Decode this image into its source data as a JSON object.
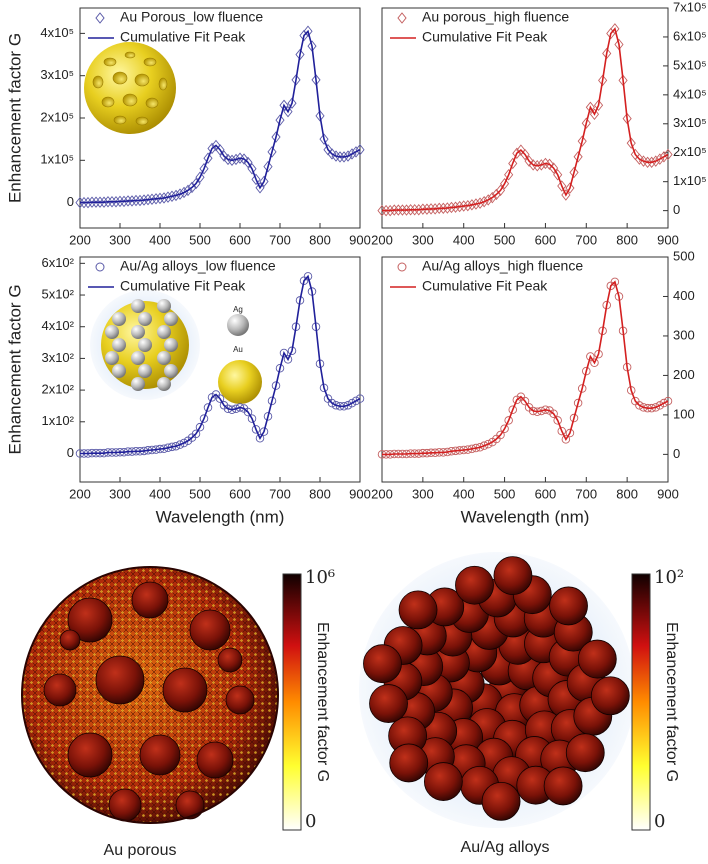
{
  "chart_data": [
    {
      "type": "line",
      "ylabel": "Enhancement factor G",
      "y_axis_side": "left",
      "legend": "upper left",
      "x": [
        200,
        210,
        220,
        230,
        240,
        250,
        260,
        270,
        280,
        290,
        300,
        310,
        320,
        330,
        340,
        350,
        360,
        370,
        380,
        390,
        400,
        410,
        420,
        430,
        440,
        450,
        460,
        470,
        480,
        490,
        500,
        510,
        520,
        530,
        540,
        550,
        560,
        570,
        580,
        590,
        600,
        610,
        620,
        630,
        640,
        650,
        660,
        670,
        680,
        690,
        700,
        710,
        720,
        730,
        740,
        750,
        760,
        770,
        780,
        790,
        800,
        810,
        820,
        830,
        840,
        850,
        860,
        870,
        880,
        890,
        900
      ],
      "xlim": [
        200,
        900
      ],
      "xticks": [
        200,
        300,
        400,
        500,
        600,
        700,
        800,
        900
      ],
      "ylim": [
        -60000,
        460000
      ],
      "yticks": [
        0,
        {
          "value": 100000,
          "label": "1x10⁵"
        },
        {
          "value": 200000,
          "label": "2x10⁵"
        },
        {
          "value": 300000,
          "label": "3x10⁵"
        },
        {
          "value": 400000,
          "label": "4x10⁵"
        }
      ],
      "series": [
        {
          "name": "Au Porous_low fluence",
          "color": "#5a5aa8",
          "marker": "diamond",
          "values": [
            0,
            0,
            0,
            1000,
            1000,
            1000,
            1000,
            2000,
            2000,
            2000,
            3000,
            3000,
            4000,
            4000,
            5000,
            5000,
            6000,
            7000,
            8000,
            9000,
            10000,
            11000,
            13000,
            15000,
            17000,
            20000,
            24000,
            29000,
            36000,
            45000,
            60000,
            80000,
            105000,
            128000,
            135000,
            125000,
            110000,
            102000,
            100000,
            102000,
            105000,
            103000,
            95000,
            80000,
            55000,
            35000,
            50000,
            85000,
            120000,
            155000,
            195000,
            230000,
            215000,
            235000,
            290000,
            350000,
            395000,
            405000,
            370000,
            290000,
            205000,
            150000,
            125000,
            115000,
            110000,
            108000,
            108000,
            110000,
            115000,
            120000,
            125000
          ]
        },
        {
          "name": "Cumulative Fit Peak",
          "color": "#20209a",
          "values": [
            0,
            0,
            0,
            1000,
            1000,
            1000,
            1000,
            2000,
            2000,
            2000,
            3000,
            3000,
            4000,
            4000,
            5000,
            5000,
            6000,
            7000,
            8000,
            9000,
            10000,
            11000,
            13000,
            15000,
            17000,
            20000,
            24000,
            29000,
            36000,
            45000,
            60000,
            80000,
            105000,
            128000,
            135000,
            125000,
            110000,
            102000,
            100000,
            102000,
            105000,
            103000,
            95000,
            80000,
            55000,
            35000,
            50000,
            85000,
            120000,
            155000,
            195000,
            230000,
            215000,
            235000,
            290000,
            350000,
            395000,
            405000,
            370000,
            290000,
            205000,
            150000,
            125000,
            115000,
            110000,
            108000,
            108000,
            110000,
            115000,
            120000,
            125000
          ]
        }
      ]
    },
    {
      "type": "line",
      "y_axis_side": "right",
      "legend": "upper left",
      "x": [
        200,
        210,
        220,
        230,
        240,
        250,
        260,
        270,
        280,
        290,
        300,
        310,
        320,
        330,
        340,
        350,
        360,
        370,
        380,
        390,
        400,
        410,
        420,
        430,
        440,
        450,
        460,
        470,
        480,
        490,
        500,
        510,
        520,
        530,
        540,
        550,
        560,
        570,
        580,
        590,
        600,
        610,
        620,
        630,
        640,
        650,
        660,
        670,
        680,
        690,
        700,
        710,
        720,
        730,
        740,
        750,
        760,
        770,
        780,
        790,
        800,
        810,
        820,
        830,
        840,
        850,
        860,
        870,
        880,
        890,
        900
      ],
      "xlim": [
        200,
        900
      ],
      "xticks": [
        200,
        300,
        400,
        500,
        600,
        700,
        800,
        900
      ],
      "ylim": [
        -60000,
        700000
      ],
      "yticks": [
        0,
        {
          "value": 100000,
          "label": "1x10⁵"
        },
        {
          "value": 200000,
          "label": "2x10⁵"
        },
        {
          "value": 300000,
          "label": "3x10⁵"
        },
        {
          "value": 400000,
          "label": "4x10⁵"
        },
        {
          "value": 500000,
          "label": "5x10⁵"
        },
        {
          "value": 600000,
          "label": "6x10⁵"
        },
        {
          "value": 700000,
          "label": "7x10⁵"
        }
      ],
      "series": [
        {
          "name": "Au porous_high fluence",
          "color": "#c46060",
          "marker": "diamond",
          "values": [
            0,
            0,
            0,
            2000,
            2000,
            2000,
            2000,
            3000,
            3000,
            3000,
            5000,
            5000,
            6000,
            6000,
            8000,
            8000,
            9000,
            11000,
            12000,
            14000,
            16000,
            17000,
            20000,
            23000,
            26000,
            31000,
            37000,
            45000,
            56000,
            70000,
            93000,
            124000,
            163000,
            198000,
            209000,
            194000,
            171000,
            158000,
            155000,
            158000,
            163000,
            160000,
            147000,
            124000,
            85000,
            54000,
            78000,
            132000,
            186000,
            240000,
            302000,
            357000,
            333000,
            364000,
            450000,
            543000,
            612000,
            628000,
            574000,
            450000,
            318000,
            233000,
            194000,
            178000,
            171000,
            167000,
            167000,
            171000,
            178000,
            186000,
            194000
          ]
        },
        {
          "name": "Cumulative Fit Peak",
          "color": "#d42020",
          "values": [
            0,
            0,
            0,
            2000,
            2000,
            2000,
            2000,
            3000,
            3000,
            3000,
            5000,
            5000,
            6000,
            6000,
            8000,
            8000,
            9000,
            11000,
            12000,
            14000,
            16000,
            17000,
            20000,
            23000,
            26000,
            31000,
            37000,
            45000,
            56000,
            70000,
            93000,
            124000,
            163000,
            198000,
            209000,
            194000,
            171000,
            158000,
            155000,
            158000,
            163000,
            160000,
            147000,
            124000,
            85000,
            54000,
            78000,
            132000,
            186000,
            240000,
            302000,
            357000,
            333000,
            364000,
            450000,
            543000,
            612000,
            628000,
            574000,
            450000,
            318000,
            233000,
            194000,
            178000,
            171000,
            167000,
            167000,
            171000,
            178000,
            186000,
            194000
          ]
        }
      ]
    },
    {
      "type": "line",
      "ylabel": "Enhancement factor G",
      "xlabel": "Wavelength (nm)",
      "y_axis_side": "left",
      "legend": "upper left",
      "x": [
        200,
        210,
        220,
        230,
        240,
        250,
        260,
        270,
        280,
        290,
        300,
        310,
        320,
        330,
        340,
        350,
        360,
        370,
        380,
        390,
        400,
        410,
        420,
        430,
        440,
        450,
        460,
        470,
        480,
        490,
        500,
        510,
        520,
        530,
        540,
        550,
        560,
        570,
        580,
        590,
        600,
        610,
        620,
        630,
        640,
        650,
        660,
        670,
        680,
        690,
        700,
        710,
        720,
        730,
        740,
        750,
        760,
        770,
        780,
        790,
        800,
        810,
        820,
        830,
        840,
        850,
        860,
        870,
        880,
        890,
        900
      ],
      "xlim": [
        200,
        900
      ],
      "xticks": [
        200,
        300,
        400,
        500,
        600,
        700,
        800,
        900
      ],
      "ylim": [
        -90,
        620
      ],
      "yticks": [
        0,
        {
          "value": 100,
          "label": "1x10²"
        },
        {
          "value": 200,
          "label": "2x10²"
        },
        {
          "value": 300,
          "label": "3x10²"
        },
        {
          "value": 400,
          "label": "4x10²"
        },
        {
          "value": 500,
          "label": "5x10²"
        },
        {
          "value": 600,
          "label": "6x10²"
        }
      ],
      "series": [
        {
          "name": "Au/Ag alloys_low fluence",
          "color": "#5a5aa8",
          "marker": "circle",
          "values": [
            0,
            0,
            0,
            1,
            1,
            1,
            1,
            3,
            3,
            3,
            4,
            4,
            6,
            6,
            7,
            7,
            8,
            10,
            11,
            12,
            14,
            15,
            18,
            21,
            23,
            28,
            33,
            40,
            50,
            62,
            83,
            110,
            145,
            177,
            186,
            173,
            152,
            141,
            138,
            141,
            145,
            142,
            131,
            110,
            76,
            48,
            69,
            117,
            166,
            214,
            269,
            317,
            297,
            324,
            400,
            483,
            545,
            559,
            511,
            400,
            283,
            207,
            173,
            159,
            152,
            149,
            149,
            152,
            159,
            166,
            173
          ]
        },
        {
          "name": "Cumulative Fit Peak",
          "color": "#20209a",
          "values": [
            0,
            0,
            0,
            1,
            1,
            1,
            1,
            3,
            3,
            3,
            4,
            4,
            6,
            6,
            7,
            7,
            8,
            10,
            11,
            12,
            14,
            15,
            18,
            21,
            23,
            28,
            33,
            40,
            50,
            62,
            83,
            110,
            145,
            177,
            186,
            173,
            152,
            141,
            138,
            141,
            145,
            142,
            131,
            110,
            76,
            48,
            69,
            117,
            166,
            214,
            269,
            317,
            297,
            324,
            400,
            483,
            545,
            559,
            511,
            400,
            283,
            207,
            173,
            159,
            152,
            149,
            149,
            152,
            159,
            166,
            173
          ]
        }
      ]
    },
    {
      "type": "line",
      "xlabel": "Wavelength (nm)",
      "y_axis_side": "right",
      "legend": "upper left",
      "x": [
        200,
        210,
        220,
        230,
        240,
        250,
        260,
        270,
        280,
        290,
        300,
        310,
        320,
        330,
        340,
        350,
        360,
        370,
        380,
        390,
        400,
        410,
        420,
        430,
        440,
        450,
        460,
        470,
        480,
        490,
        500,
        510,
        520,
        530,
        540,
        550,
        560,
        570,
        580,
        590,
        600,
        610,
        620,
        630,
        640,
        650,
        660,
        670,
        680,
        690,
        700,
        710,
        720,
        730,
        740,
        750,
        760,
        770,
        780,
        790,
        800,
        810,
        820,
        830,
        840,
        850,
        860,
        870,
        880,
        890,
        900
      ],
      "xlim": [
        200,
        900
      ],
      "xticks": [
        200,
        300,
        400,
        500,
        600,
        700,
        800,
        900
      ],
      "ylim": [
        -70,
        500
      ],
      "yticks": [
        0,
        100,
        200,
        300,
        400,
        500
      ],
      "series": [
        {
          "name": "Au/Ag alloys_high fluence",
          "color": "#c46060",
          "marker": "circle",
          "values": [
            0,
            0,
            0,
            1,
            1,
            1,
            1,
            2,
            2,
            2,
            3,
            3,
            4,
            4,
            5,
            5,
            6,
            8,
            9,
            10,
            11,
            12,
            14,
            16,
            18,
            22,
            26,
            31,
            39,
            49,
            65,
            86,
            113,
            138,
            146,
            135,
            119,
            110,
            108,
            110,
            113,
            111,
            103,
            86,
            59,
            38,
            54,
            92,
            130,
            167,
            211,
            248,
            232,
            254,
            313,
            378,
            427,
            437,
            400,
            313,
            221,
            162,
            135,
            124,
            119,
            117,
            117,
            119,
            124,
            130,
            135
          ]
        },
        {
          "name": "Cumulative Fit Peak",
          "color": "#d42020",
          "values": [
            0,
            0,
            0,
            1,
            1,
            1,
            1,
            2,
            2,
            2,
            3,
            3,
            4,
            4,
            5,
            5,
            6,
            8,
            9,
            10,
            11,
            12,
            14,
            16,
            18,
            22,
            26,
            31,
            39,
            49,
            65,
            86,
            113,
            138,
            146,
            135,
            119,
            110,
            108,
            110,
            113,
            111,
            103,
            86,
            59,
            38,
            54,
            92,
            130,
            167,
            211,
            248,
            232,
            254,
            313,
            378,
            427,
            437,
            400,
            313,
            221,
            162,
            135,
            124,
            119,
            117,
            117,
            119,
            124,
            130,
            135
          ]
        }
      ]
    }
  ],
  "images": [
    {
      "caption": "Au porous",
      "colorbar_title": "Enhancement factor G",
      "colorbar_max": "10⁶",
      "colorbar_min": "0"
    },
    {
      "caption": "Au/Ag alloys",
      "colorbar_title": "Enhancement factor G",
      "colorbar_max": "10²",
      "colorbar_min": "0"
    }
  ]
}
